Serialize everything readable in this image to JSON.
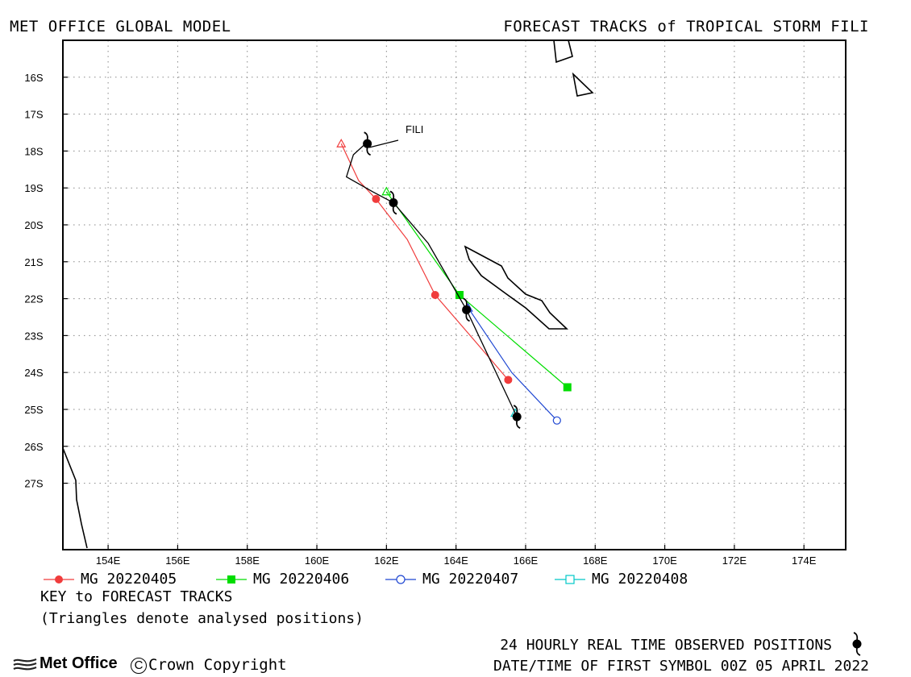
{
  "header": {
    "left": "MET OFFICE GLOBAL MODEL",
    "right": "FORECAST TRACKS of TROPICAL STORM FILI"
  },
  "chart_data": {
    "type": "map",
    "lon_range": [
      152.7,
      175.2
    ],
    "lat_range": [
      -28.8,
      -15.0
    ],
    "grid": true,
    "x_ticks": [
      {
        "value": 154,
        "label": "154E"
      },
      {
        "value": 156,
        "label": "156E"
      },
      {
        "value": 158,
        "label": "158E"
      },
      {
        "value": 160,
        "label": "160E"
      },
      {
        "value": 162,
        "label": "162E"
      },
      {
        "value": 164,
        "label": "164E"
      },
      {
        "value": 166,
        "label": "166E"
      },
      {
        "value": 168,
        "label": "168E"
      },
      {
        "value": 170,
        "label": "170E"
      },
      {
        "value": 172,
        "label": "172E"
      },
      {
        "value": 174,
        "label": "174E"
      }
    ],
    "y_ticks": [
      {
        "value": -16,
        "label": "16S"
      },
      {
        "value": -17,
        "label": "17S"
      },
      {
        "value": -18,
        "label": "18S"
      },
      {
        "value": -19,
        "label": "19S"
      },
      {
        "value": -20,
        "label": "20S"
      },
      {
        "value": -21,
        "label": "21S"
      },
      {
        "value": -22,
        "label": "22S"
      },
      {
        "value": -23,
        "label": "23S"
      },
      {
        "value": -24,
        "label": "24S"
      },
      {
        "value": -25,
        "label": "25S"
      },
      {
        "value": -26,
        "label": "26S"
      },
      {
        "value": -27,
        "label": "27S"
      }
    ],
    "storm_label": "FILI",
    "observed_track": {
      "color": "#000000",
      "path": [
        [
          161.4,
          -17.8
        ],
        [
          161.05,
          -18.1
        ],
        [
          160.85,
          -18.7
        ],
        [
          161.6,
          -19.1
        ],
        [
          162.2,
          -19.4
        ],
        [
          163.2,
          -20.5
        ],
        [
          164.3,
          -22.3
        ],
        [
          165.75,
          -25.2
        ]
      ],
      "symbols": [
        [
          161.45,
          -17.8
        ],
        [
          162.2,
          -19.4
        ],
        [
          164.3,
          -22.3
        ],
        [
          165.75,
          -25.2
        ]
      ]
    },
    "forecast_tracks": [
      {
        "name": "MG 20220405",
        "color": "#f03c3c",
        "marker": "circle-filled",
        "analysed": [
          160.7,
          -17.8
        ],
        "path": [
          [
            160.7,
            -17.8
          ],
          [
            161.2,
            -18.8
          ],
          [
            161.7,
            -19.3
          ],
          [
            162.6,
            -20.4
          ],
          [
            163.4,
            -21.9
          ],
          [
            164.5,
            -23.1
          ],
          [
            165.5,
            -24.2
          ]
        ],
        "points": [
          [
            161.7,
            -19.3
          ],
          [
            163.4,
            -21.9
          ],
          [
            165.5,
            -24.2
          ]
        ]
      },
      {
        "name": "MG 20220406",
        "color": "#00dd00",
        "marker": "square-filled",
        "analysed": [
          162.0,
          -19.1
        ],
        "path": [
          [
            162.0,
            -19.1
          ],
          [
            162.3,
            -19.5
          ],
          [
            164.1,
            -21.9
          ],
          [
            167.2,
            -24.4
          ]
        ],
        "points": [
          [
            164.1,
            -21.9
          ],
          [
            167.2,
            -24.4
          ]
        ]
      },
      {
        "name": "MG 20220407",
        "color": "#1e46d2",
        "marker": "circle-open",
        "analysed": [
          164.35,
          -22.25
        ],
        "path": [
          [
            164.35,
            -22.25
          ],
          [
            165.6,
            -24.0
          ],
          [
            166.9,
            -25.3
          ]
        ],
        "points": [
          [
            166.9,
            -25.3
          ]
        ]
      },
      {
        "name": "MG 20220408",
        "color": "#00c8c8",
        "marker": "square-open",
        "analysed": [
          165.7,
          -25.1
        ],
        "path": [],
        "points": []
      }
    ]
  },
  "key": {
    "title": "KEY to FORECAST TRACKS",
    "note": "(Triangles denote analysed positions)"
  },
  "footer": {
    "observed": "24 HOURLY REAL TIME OBSERVED POSITIONS",
    "date": "DATE/TIME OF FIRST SYMBOL 00Z 05 APRIL 2022",
    "logo": "Met Office",
    "copyright": "Crown Copyright",
    "copyright_symbol": "C"
  }
}
